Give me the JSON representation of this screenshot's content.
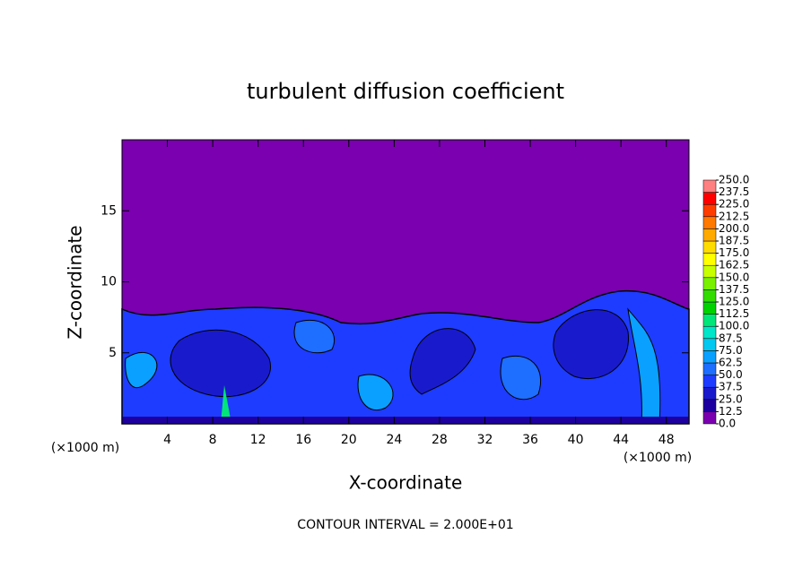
{
  "chart_data": {
    "type": "contour",
    "title": "turbulent diffusion coefficient",
    "x_label": "X-coordinate",
    "y_label": "Z-coordinate",
    "x_unit": "(×1000 m)",
    "y_unit": "(×1000 m)",
    "annotation": "CONTOUR INTERVAL = 2.000E+01",
    "xlim": [
      0,
      50
    ],
    "xticks": [
      4,
      8,
      12,
      16,
      20,
      24,
      28,
      32,
      36,
      40,
      44,
      48
    ],
    "ylim": [
      0,
      20
    ],
    "yticks": [
      5,
      10,
      15
    ],
    "colorbar": {
      "ticks": [
        {
          "value": 0,
          "label": "0.0"
        },
        12.5,
        {
          "value": 25,
          "label": "25.0"
        },
        37.5,
        {
          "value": 50,
          "label": "50.0"
        },
        62.5,
        {
          "value": 75,
          "label": "75.0"
        },
        87.5,
        {
          "value": 100,
          "label": "100.0"
        },
        112.5,
        {
          "value": 125,
          "label": "125.0"
        },
        137.5,
        {
          "value": 150,
          "label": "150.0"
        },
        162.5,
        {
          "value": 175,
          "label": "175.0"
        },
        187.5,
        {
          "value": 200,
          "label": "200.0"
        },
        212.5,
        {
          "value": 225,
          "label": "225.0"
        },
        237.5,
        {
          "value": 250,
          "label": "250.0"
        }
      ],
      "colors": [
        "#7a00b0",
        "#1e00a0",
        "#1a1acd",
        "#1e3cff",
        "#1e6eff",
        "#0aa0ff",
        "#00c8f0",
        "#00e6c8",
        "#00e678",
        "#00d200",
        "#32dc00",
        "#78f000",
        "#c8ff00",
        "#ffff00",
        "#ffdc00",
        "#ffaa00",
        "#ff7800",
        "#ff3c00",
        "#ff0000",
        "#ff8080"
      ]
    }
  }
}
